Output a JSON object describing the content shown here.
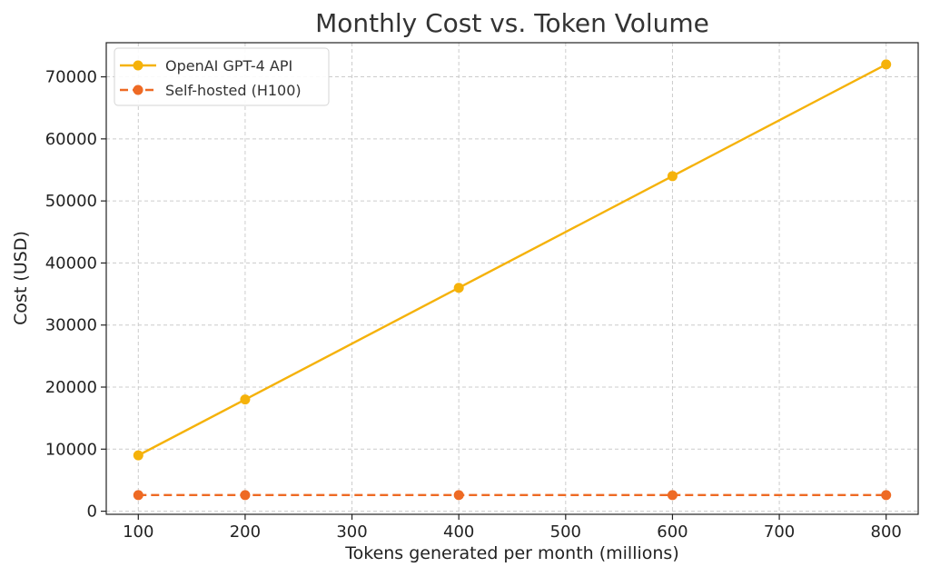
{
  "chart_data": {
    "type": "line",
    "title": "Monthly Cost vs. Token Volume",
    "xlabel": "Tokens generated per month (millions)",
    "ylabel": "Cost (USD)",
    "xlim": [
      70,
      830
    ],
    "ylim": [
      -500,
      75500
    ],
    "xticks": [
      100,
      200,
      300,
      400,
      500,
      600,
      700,
      800
    ],
    "yticks": [
      0,
      10000,
      20000,
      30000,
      40000,
      50000,
      60000,
      70000
    ],
    "grid": true,
    "legend_position": "top-left",
    "x": [
      100,
      200,
      400,
      600,
      800
    ],
    "series": [
      {
        "name": "OpenAI GPT-4 API",
        "values": [
          9000,
          18000,
          36000,
          54000,
          72000
        ],
        "color": "#f5b20a",
        "line_style": "solid",
        "marker": "circle"
      },
      {
        "name": "Self-hosted (H100)",
        "values": [
          2600,
          2600,
          2600,
          2600,
          2600
        ],
        "color": "#ee6a24",
        "line_style": "dashed",
        "marker": "circle"
      }
    ]
  }
}
